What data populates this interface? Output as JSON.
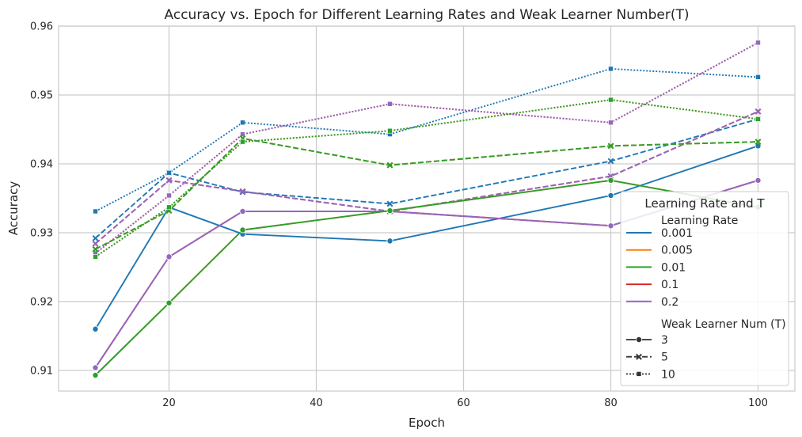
{
  "chart_data": {
    "type": "line",
    "title": "Accuracy vs. Epoch for Different Learning Rates and Weak Learner Number(T)",
    "xlabel": "Epoch",
    "ylabel": "Accuracy",
    "xlim": [
      5,
      105
    ],
    "ylim": [
      0.907,
      0.96
    ],
    "xticks": [
      20,
      40,
      60,
      80,
      100
    ],
    "yticks": [
      0.91,
      0.92,
      0.93,
      0.94,
      0.95,
      0.96
    ],
    "xtick_labels": [
      "20",
      "40",
      "60",
      "80",
      "100"
    ],
    "ytick_labels": [
      "0.91",
      "0.92",
      "0.93",
      "0.94",
      "0.95",
      "0.96"
    ],
    "grid": true,
    "x": [
      10,
      20,
      30,
      50,
      80,
      100
    ],
    "legend": {
      "title": "Learning Rate and T",
      "placement": "right",
      "hue_title": "Learning Rate",
      "style_title": "Weak Learner Num (T)",
      "hue_entries": [
        {
          "label": "0.001",
          "color": "#1f77b4"
        },
        {
          "label": "0.005",
          "color": "#ff7f0e"
        },
        {
          "label": "0.01",
          "color": "#2ca02c"
        },
        {
          "label": "0.1",
          "color": "#d62728"
        },
        {
          "label": "0.2",
          "color": "#9467bd"
        }
      ],
      "style_entries": [
        {
          "label": "3",
          "dash": "solid",
          "marker": "circle"
        },
        {
          "label": "5",
          "dash": "dashed",
          "marker": "x"
        },
        {
          "label": "10",
          "dash": "dotted",
          "marker": "square"
        }
      ]
    },
    "series": [
      {
        "lr": "0.001",
        "T": "3",
        "color": "#1f77b4",
        "dash": "solid",
        "marker": "circle",
        "values": [
          0.916,
          0.9337,
          0.9298,
          0.9288,
          0.9354,
          0.9426
        ]
      },
      {
        "lr": "0.001",
        "T": "5",
        "color": "#1f77b4",
        "dash": "dashed",
        "marker": "x",
        "values": [
          0.9292,
          0.9387,
          0.9359,
          0.9342,
          0.9404,
          0.9465
        ]
      },
      {
        "lr": "0.001",
        "T": "10",
        "color": "#1f77b4",
        "dash": "dotted",
        "marker": "square",
        "values": [
          0.9331,
          0.9387,
          0.946,
          0.9443,
          0.9538,
          0.9526
        ]
      },
      {
        "lr": "0.1",
        "T": "3",
        "color": "#d62728",
        "dash": "solid",
        "marker": "circle",
        "values": [
          0.9104,
          0.9265,
          0.9331,
          0.9331,
          0.931,
          0.9376
        ]
      },
      {
        "lr": "0.1",
        "T": "5",
        "color": "#d62728",
        "dash": "dashed",
        "marker": "x",
        "values": [
          0.9284,
          0.9376,
          0.936,
          0.9331,
          0.9382,
          0.9476
        ]
      },
      {
        "lr": "0.1",
        "T": "10",
        "color": "#d62728",
        "dash": "dotted",
        "marker": "square",
        "values": [
          0.927,
          0.9354,
          0.9443,
          0.9487,
          0.946,
          0.9576
        ]
      },
      {
        "lr": "0.2",
        "T": "3",
        "color": "#9467bd",
        "dash": "solid",
        "marker": "circle",
        "values": [
          0.9104,
          0.9265,
          0.9331,
          0.9331,
          0.931,
          0.9376
        ]
      },
      {
        "lr": "0.2",
        "T": "5",
        "color": "#9467bd",
        "dash": "dashed",
        "marker": "x",
        "values": [
          0.9284,
          0.9376,
          0.936,
          0.9331,
          0.9382,
          0.9476
        ]
      },
      {
        "lr": "0.2",
        "T": "10",
        "color": "#9467bd",
        "dash": "dotted",
        "marker": "square",
        "values": [
          0.927,
          0.9354,
          0.9443,
          0.9487,
          0.946,
          0.9576
        ]
      },
      {
        "lr": "0.005",
        "T": "3",
        "color": "#ff7f0e",
        "dash": "solid",
        "marker": "circle",
        "values": [
          0.9093,
          0.9198,
          0.9304,
          0.9332,
          0.9376,
          0.9337
        ]
      },
      {
        "lr": "0.005",
        "T": "5",
        "color": "#ff7f0e",
        "dash": "dashed",
        "marker": "x",
        "values": [
          0.9276,
          0.9332,
          0.9437,
          0.9398,
          0.9426,
          0.9432
        ]
      },
      {
        "lr": "0.005",
        "T": "10",
        "color": "#ff7f0e",
        "dash": "dotted",
        "marker": "square",
        "values": [
          0.9265,
          0.9337,
          0.9432,
          0.9448,
          0.9493,
          0.9465
        ]
      },
      {
        "lr": "0.01",
        "T": "3",
        "color": "#2ca02c",
        "dash": "solid",
        "marker": "circle",
        "values": [
          0.9093,
          0.9198,
          0.9304,
          0.9332,
          0.9376,
          0.9337
        ]
      },
      {
        "lr": "0.01",
        "T": "5",
        "color": "#2ca02c",
        "dash": "dashed",
        "marker": "x",
        "values": [
          0.9276,
          0.9332,
          0.9437,
          0.9398,
          0.9426,
          0.9432
        ]
      },
      {
        "lr": "0.01",
        "T": "10",
        "color": "#2ca02c",
        "dash": "dotted",
        "marker": "square",
        "values": [
          0.9265,
          0.9337,
          0.9432,
          0.9448,
          0.9493,
          0.9465
        ]
      }
    ]
  }
}
